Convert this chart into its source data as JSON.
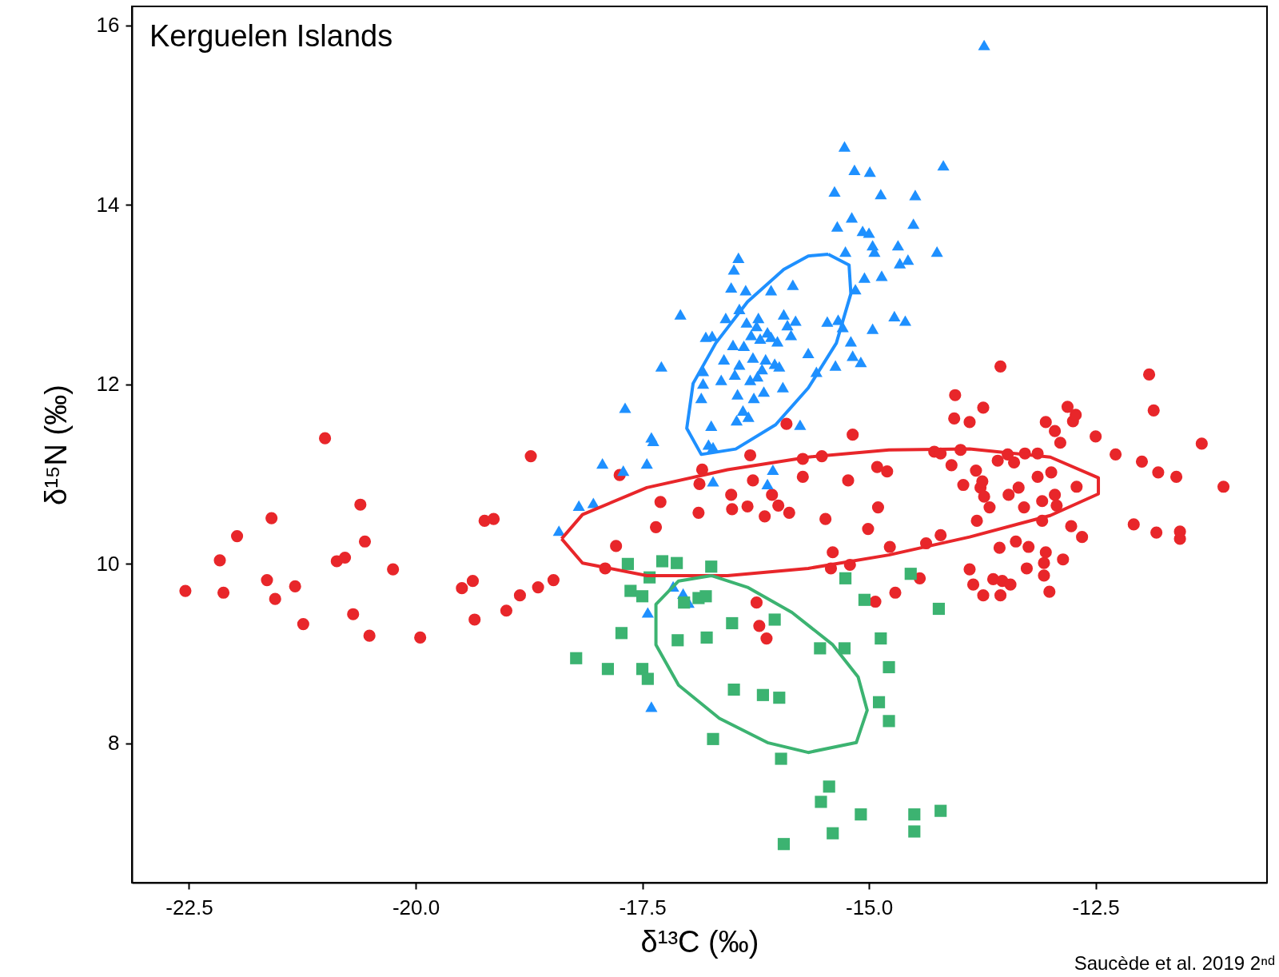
{
  "chart_data": {
    "type": "scatter",
    "title": "Kerguelen Islands",
    "xlabel": "δ¹³C (‰)",
    "ylabel": "δ¹⁵N (‰)",
    "annotations": [
      "Saucède et al. 2019 2ⁿᵈ"
    ],
    "xlim": [
      -23.13,
      -10.61
    ],
    "ylim": [
      6.45,
      16.21
    ],
    "xticks": [
      {
        "value": -22.5,
        "label": "-22.5"
      },
      {
        "value": -20,
        "label": "-20.0"
      },
      {
        "value": -17.5,
        "label": "-17.5"
      },
      {
        "value": -15,
        "label": "-15.0"
      },
      {
        "value": -12.5,
        "label": "-12.5"
      }
    ],
    "yticks": [
      8,
      10,
      12,
      14,
      16
    ],
    "grid": false,
    "series": [
      {
        "marker": "circle",
        "color": "#e8262a",
        "x": [
          -22.54,
          -22.16,
          -22.12,
          -21.97,
          -21.64,
          -21.59,
          -21.55,
          -21.33,
          -21.24,
          -21.0,
          -20.87,
          -20.78,
          -20.69,
          -20.61,
          -20.56,
          -20.51,
          -20.25,
          -19.95,
          -19.49,
          -19.37,
          -19.35,
          -19.24,
          -19.14,
          -19.0,
          -18.85,
          -18.73,
          -18.65,
          -18.48,
          -17.91,
          -17.79,
          -17.75,
          -17.35,
          -17.3,
          -16.88,
          -16.87,
          -16.84,
          -16.52,
          -16.51,
          -16.34,
          -16.31,
          -16.28,
          -16.24,
          -16.21,
          -16.15,
          -16.13,
          -16.07,
          -16.0,
          -15.91,
          -15.88,
          -15.73,
          -15.73,
          -15.52,
          -15.48,
          -15.42,
          -15.4,
          -15.23,
          -15.21,
          -15.18,
          -15.01,
          -14.93,
          -14.91,
          -14.9,
          -14.8,
          -14.77,
          -14.71,
          -14.44,
          -14.37,
          -14.28,
          -14.21,
          -14.21,
          -14.09,
          -14.05,
          -14.06,
          -13.99,
          -13.96,
          -13.89,
          -13.89,
          -13.85,
          -13.82,
          -13.81,
          -13.77,
          -13.75,
          -13.74,
          -13.74,
          -13.73,
          -13.67,
          -13.63,
          -13.58,
          -13.56,
          -13.55,
          -13.55,
          -13.53,
          -13.47,
          -13.46,
          -13.44,
          -13.4,
          -13.38,
          -13.35,
          -13.29,
          -13.28,
          -13.24,
          -13.26,
          -13.14,
          -13.14,
          -13.09,
          -13.09,
          -13.07,
          -13.07,
          -13.05,
          -13.05,
          -13.01,
          -12.99,
          -12.95,
          -12.95,
          -12.93,
          -12.89,
          -12.86,
          -12.81,
          -12.77,
          -12.75,
          -12.72,
          -12.71,
          -12.65,
          -12.5,
          -12.28,
          -12.08,
          -11.99,
          -11.91,
          -11.86,
          -11.83,
          -11.81,
          -11.61,
          -11.57,
          -11.57,
          -11.33,
          -11.09
        ],
        "values": [
          9.7,
          10.04,
          9.68,
          10.31,
          9.82,
          10.51,
          9.61,
          9.75,
          9.33,
          11.4,
          10.03,
          10.07,
          9.44,
          10.66,
          10.25,
          9.2,
          9.94,
          9.18,
          9.73,
          9.81,
          9.38,
          10.48,
          10.5,
          9.48,
          9.65,
          11.2,
          9.74,
          9.82,
          9.95,
          10.2,
          10.99,
          10.41,
          10.69,
          10.57,
          10.89,
          11.05,
          10.77,
          10.61,
          10.64,
          11.21,
          10.93,
          9.57,
          9.31,
          10.53,
          9.17,
          10.77,
          10.65,
          11.56,
          10.57,
          10.97,
          11.17,
          11.2,
          10.5,
          9.95,
          10.13,
          10.93,
          9.99,
          11.44,
          10.39,
          9.58,
          11.08,
          10.63,
          11.03,
          10.19,
          9.68,
          9.84,
          10.23,
          11.25,
          10.32,
          11.23,
          11.1,
          11.88,
          11.62,
          11.27,
          10.88,
          11.58,
          9.94,
          9.77,
          11.04,
          10.48,
          10.85,
          10.92,
          11.74,
          9.65,
          10.75,
          10.63,
          9.83,
          11.15,
          10.18,
          9.65,
          12.2,
          9.81,
          11.22,
          10.77,
          9.77,
          11.13,
          10.25,
          10.85,
          10.63,
          11.23,
          10.19,
          9.95,
          11.23,
          10.97,
          10.48,
          10.7,
          10.01,
          9.87,
          11.58,
          10.13,
          9.69,
          11.02,
          10.77,
          11.48,
          10.65,
          11.35,
          10.05,
          11.75,
          10.42,
          11.59,
          11.66,
          10.86,
          10.3,
          11.42,
          11.22,
          10.44,
          11.14,
          12.11,
          11.71,
          10.35,
          11.02,
          10.97,
          10.36,
          10.28,
          11.34,
          10.86
        ]
      },
      {
        "marker": "triangle",
        "color": "#1e90ff",
        "x": [
          -18.42,
          -18.2,
          -18.04,
          -17.94,
          -17.71,
          -17.69,
          -17.45,
          -17.44,
          -17.4,
          -17.4,
          -17.38,
          -17.29,
          -17.16,
          -17.08,
          -17.05,
          -16.99,
          -16.85,
          -16.83,
          -16.83,
          -16.8,
          -16.77,
          -16.74,
          -16.73,
          -16.72,
          -16.72,
          -16.63,
          -16.6,
          -16.58,
          -16.52,
          -16.5,
          -16.49,
          -16.48,
          -16.46,
          -16.45,
          -16.44,
          -16.43,
          -16.43,
          -16.39,
          -16.38,
          -16.36,
          -16.35,
          -16.33,
          -16.31,
          -16.3,
          -16.28,
          -16.27,
          -16.24,
          -16.23,
          -16.22,
          -16.2,
          -16.18,
          -16.16,
          -16.14,
          -16.12,
          -16.12,
          -16.08,
          -16.08,
          -16.06,
          -16.04,
          -16.01,
          -15.99,
          -15.95,
          -15.94,
          -15.9,
          -15.86,
          -15.84,
          -15.81,
          -15.76,
          -15.67,
          -15.58,
          -15.46,
          -15.38,
          -15.37,
          -15.35,
          -15.34,
          -15.29,
          -15.27,
          -15.26,
          -15.2,
          -15.19,
          -15.18,
          -15.16,
          -15.15,
          -15.09,
          -15.07,
          -15.05,
          -15.0,
          -14.99,
          -14.96,
          -14.96,
          -14.94,
          -14.87,
          -14.86,
          -14.72,
          -14.68,
          -14.66,
          -14.6,
          -14.57,
          -14.51,
          -14.49,
          -14.25,
          -14.18,
          -13.73
        ],
        "values": [
          10.37,
          10.65,
          10.68,
          11.12,
          11.04,
          11.74,
          11.12,
          9.46,
          8.41,
          11.41,
          11.37,
          12.2,
          9.75,
          12.78,
          9.67,
          9.57,
          11.85,
          12.15,
          12.01,
          12.53,
          11.33,
          11.54,
          12.54,
          10.92,
          11.3,
          12.05,
          12.28,
          12.74,
          13.08,
          12.44,
          13.28,
          12.11,
          11.6,
          11.89,
          13.41,
          12.84,
          12.22,
          11.71,
          12.43,
          13.05,
          12.69,
          11.64,
          12.05,
          12.55,
          12.3,
          11.85,
          12.65,
          12.09,
          12.74,
          12.51,
          12.17,
          11.92,
          12.28,
          12.58,
          10.89,
          13.05,
          12.53,
          11.05,
          12.23,
          12.48,
          12.2,
          11.97,
          12.78,
          12.66,
          12.55,
          13.11,
          12.71,
          11.55,
          12.35,
          12.14,
          12.7,
          14.15,
          12.21,
          13.76,
          12.72,
          12.64,
          14.65,
          13.48,
          12.48,
          13.86,
          12.32,
          14.39,
          13.06,
          12.25,
          13.71,
          13.19,
          13.69,
          14.37,
          13.55,
          12.62,
          13.48,
          14.12,
          13.21,
          12.76,
          13.55,
          13.35,
          12.71,
          13.39,
          13.79,
          14.11,
          13.48,
          14.44,
          15.78
        ]
      },
      {
        "marker": "square",
        "color": "#3cb371",
        "x": [
          -18.23,
          -17.88,
          -17.73,
          -17.66,
          -17.63,
          -17.5,
          -17.5,
          -17.44,
          -17.42,
          -17.28,
          -17.12,
          -17.11,
          -17.04,
          -16.88,
          -16.8,
          -16.79,
          -16.74,
          -16.72,
          -16.51,
          -16.49,
          -16.17,
          -16.04,
          -15.99,
          -15.97,
          -15.94,
          -15.54,
          -15.53,
          -15.44,
          -15.4,
          -15.27,
          -15.26,
          -15.09,
          -15.05,
          -14.89,
          -14.87,
          -14.78,
          -14.78,
          -14.54,
          -14.5,
          -14.5,
          -14.23,
          -14.21
        ],
        "values": [
          8.95,
          8.83,
          9.23,
          10.0,
          9.7,
          8.83,
          9.64,
          8.72,
          9.85,
          10.03,
          10.01,
          9.15,
          9.57,
          9.62,
          9.64,
          9.18,
          9.97,
          8.05,
          9.34,
          8.6,
          8.54,
          9.38,
          8.51,
          7.83,
          6.88,
          9.06,
          7.35,
          7.52,
          7.0,
          9.06,
          9.84,
          7.21,
          9.6,
          8.46,
          9.17,
          8.85,
          8.25,
          9.89,
          7.02,
          7.21,
          9.5,
          7.25
        ]
      }
    ]
  }
}
